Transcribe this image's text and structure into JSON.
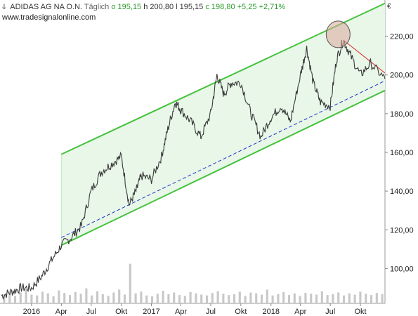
{
  "header": {
    "symbol_icon": "bars-icon",
    "name": "ADIDAS AG NA O.N.",
    "period": "Täglich",
    "open": "o 195,15",
    "high": "h 200,80",
    "low": "l 195,15",
    "close": "c 198,80",
    "change": "+5,25",
    "change_pct": "+2,71%",
    "website": "www.tradesignalonline.com",
    "currency": "€"
  },
  "colors": {
    "price": "#3a3a3a",
    "channel_line": "#44c23c",
    "channel_fill": "#e8f7e8",
    "support_dashed": "#2233cc",
    "resistance_red": "#e02020",
    "highlight_circle": "#d9a79a",
    "volume": "#c8c8c8"
  },
  "chart_data": {
    "type": "line",
    "title": "ADIDAS AG NA O.N.",
    "xlabel": "",
    "ylabel": "€",
    "x_ticks": [
      "2016",
      "Apr",
      "Jul",
      "Okt",
      "2017",
      "Apr",
      "Jul",
      "Okt",
      "2018",
      "Apr",
      "Jul",
      "Okt"
    ],
    "y_ticks": [
      "100,00",
      "120,00",
      "140,00",
      "160,00",
      "180,00",
      "200,00",
      "220,00"
    ],
    "xlim": [
      "2015-10-01",
      "2018-12-15"
    ],
    "ylim": [
      82,
      238
    ],
    "grid": false,
    "series": [
      {
        "values": [
          [
            "2015-10-01",
            86
          ],
          [
            "2015-11-01",
            88
          ],
          [
            "2015-12-01",
            90
          ],
          [
            "2016-01-01",
            90
          ],
          [
            "2016-02-01",
            96
          ],
          [
            "2016-03-01",
            104
          ],
          [
            "2016-04-01",
            112
          ],
          [
            "2016-05-01",
            116
          ],
          [
            "2016-06-01",
            122
          ],
          [
            "2016-07-01",
            140
          ],
          [
            "2016-08-01",
            150
          ],
          [
            "2016-09-01",
            154
          ],
          [
            "2016-10-01",
            158
          ],
          [
            "2016-10-25",
            133
          ],
          [
            "2016-11-15",
            140
          ],
          [
            "2016-12-01",
            148
          ],
          [
            "2017-01-01",
            146
          ],
          [
            "2017-02-01",
            158
          ],
          [
            "2017-02-20",
            172
          ],
          [
            "2017-03-15",
            186
          ],
          [
            "2017-04-01",
            182
          ],
          [
            "2017-05-01",
            176
          ],
          [
            "2017-06-01",
            168
          ],
          [
            "2017-07-01",
            180
          ],
          [
            "2017-07-20",
            200
          ],
          [
            "2017-08-10",
            190
          ],
          [
            "2017-09-01",
            196
          ],
          [
            "2017-10-01",
            196
          ],
          [
            "2017-11-01",
            180
          ],
          [
            "2017-12-01",
            168
          ],
          [
            "2018-01-01",
            178
          ],
          [
            "2018-02-01",
            184
          ],
          [
            "2018-03-01",
            176
          ],
          [
            "2018-04-01",
            200
          ],
          [
            "2018-04-20",
            214
          ],
          [
            "2018-05-10",
            196
          ],
          [
            "2018-06-01",
            186
          ],
          [
            "2018-07-01",
            184
          ],
          [
            "2018-07-20",
            208
          ],
          [
            "2018-08-10",
            218
          ],
          [
            "2018-09-01",
            210
          ],
          [
            "2018-10-01",
            200
          ],
          [
            "2018-11-01",
            206
          ],
          [
            "2018-12-15",
            198
          ]
        ]
      }
    ],
    "channel": {
      "upper": [
        [
          "2016-04-01",
          159
        ],
        [
          "2018-12-15",
          237
        ]
      ],
      "lower": [
        [
          "2016-04-01",
          112
        ],
        [
          "2018-12-15",
          192
        ]
      ]
    },
    "support_line": [
      [
        "2016-04-01",
        116
      ],
      [
        "2018-12-15",
        197
      ]
    ],
    "resistance_line": [
      [
        "2018-08-10",
        218
      ],
      [
        "2018-12-15",
        201
      ]
    ],
    "highlight": [
      "2018-07-25",
      221
    ],
    "volume": [
      22,
      30,
      18,
      26,
      34,
      21,
      19,
      28,
      24,
      17,
      31,
      25,
      20,
      27,
      23,
      36,
      19,
      29,
      22,
      18,
      26,
      33,
      21,
      95,
      24,
      28,
      19,
      17,
      23,
      30,
      22,
      26,
      20,
      18,
      27,
      24,
      21,
      19,
      25,
      29,
      23,
      20,
      22,
      28,
      18,
      26,
      24,
      21,
      33,
      19,
      22,
      27,
      20,
      24,
      18,
      25,
      23,
      21,
      29,
      20,
      22,
      26,
      19,
      24,
      21,
      28,
      23,
      20,
      25,
      22
    ]
  }
}
